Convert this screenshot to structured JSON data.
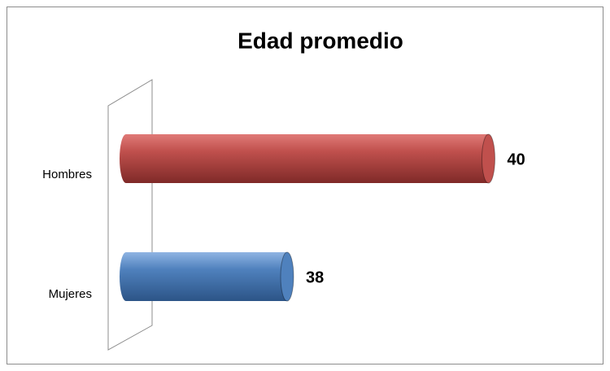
{
  "chart_data": {
    "type": "bar",
    "orientation": "horizontal",
    "title": "Edad promedio",
    "categories": [
      "Hombres",
      "Mujeres"
    ],
    "values": [
      40,
      38
    ],
    "colors": [
      "#c0504d",
      "#4f81bd"
    ],
    "xlim": [
      36.4,
      40.4
    ]
  }
}
